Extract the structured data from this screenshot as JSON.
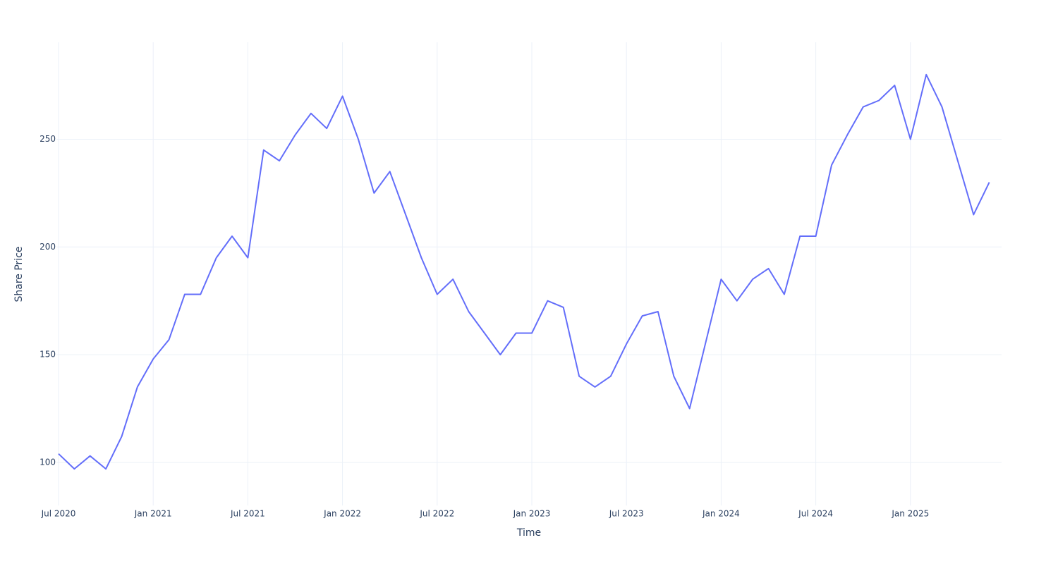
{
  "chart_data": {
    "type": "line",
    "x_label": "Time",
    "y_label": "Share Price",
    "x": [
      "2020-07",
      "2020-08",
      "2020-09",
      "2020-10",
      "2020-11",
      "2020-12",
      "2021-01",
      "2021-02",
      "2021-03",
      "2021-04",
      "2021-05",
      "2021-06",
      "2021-07",
      "2021-08",
      "2021-09",
      "2021-10",
      "2021-11",
      "2021-12",
      "2022-01",
      "2022-02",
      "2022-03",
      "2022-04",
      "2022-05",
      "2022-06",
      "2022-07",
      "2022-08",
      "2022-09",
      "2022-10",
      "2022-11",
      "2022-12",
      "2023-01",
      "2023-02",
      "2023-03",
      "2023-04",
      "2023-05",
      "2023-06",
      "2023-07",
      "2023-08",
      "2023-09",
      "2023-10",
      "2023-11",
      "2023-12",
      "2024-01",
      "2024-02",
      "2024-03",
      "2024-04",
      "2024-05",
      "2024-06",
      "2024-07",
      "2024-08",
      "2024-09",
      "2024-10",
      "2024-11",
      "2024-12",
      "2025-01",
      "2025-02",
      "2025-03",
      "2025-04",
      "2025-05",
      "2025-06"
    ],
    "series": [
      {
        "color": "#636efa",
        "values": [
          104,
          97,
          103,
          97,
          112,
          135,
          148,
          157,
          178,
          178,
          195,
          205,
          195,
          245,
          240,
          252,
          262,
          255,
          270,
          250,
          225,
          235,
          215,
          195,
          178,
          185,
          170,
          160,
          150,
          160,
          160,
          175,
          172,
          140,
          135,
          140,
          155,
          168,
          170,
          140,
          125,
          155,
          185,
          175,
          185,
          190,
          178,
          205,
          205,
          238,
          252,
          265,
          268,
          275,
          250,
          280,
          265,
          240,
          215,
          230
        ]
      }
    ],
    "xlim": [
      "2020-07",
      "2025-07"
    ],
    "xticks": [
      {
        "value": "2020-07",
        "label": "Jul 2020"
      },
      {
        "value": "2021-01",
        "label": "Jan 2021"
      },
      {
        "value": "2021-07",
        "label": "Jul 2021"
      },
      {
        "value": "2022-01",
        "label": "Jan 2022"
      },
      {
        "value": "2022-07",
        "label": "Jul 2022"
      },
      {
        "value": "2023-01",
        "label": "Jan 2023"
      },
      {
        "value": "2023-07",
        "label": "Jul 2023"
      },
      {
        "value": "2024-01",
        "label": "Jan 2024"
      },
      {
        "value": "2024-07",
        "label": "Jul 2024"
      },
      {
        "value": "2025-01",
        "label": "Jan 2025"
      }
    ],
    "ylim": [
      80,
      295
    ],
    "yticks": [
      100,
      150,
      200,
      250
    ],
    "grid": true
  }
}
